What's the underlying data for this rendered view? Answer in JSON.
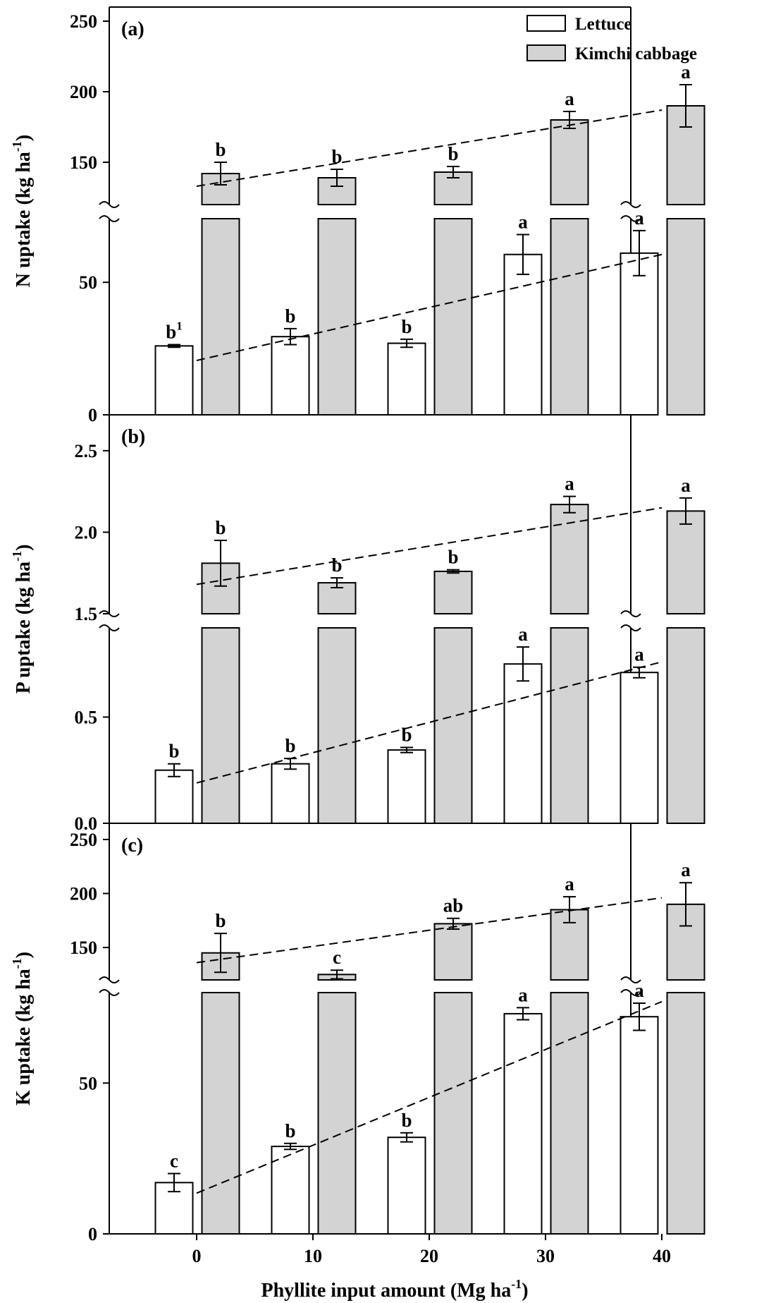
{
  "chart_data": {
    "type": "bar",
    "legend_position": "top-right",
    "x_axis": {
      "title_main": "Phyllite input amount (Mg ha",
      "title_sup": "-1",
      "title_end": ")",
      "ticks": [
        0,
        10,
        20,
        30,
        40
      ],
      "tick_labels": [
        "0",
        "10",
        "20",
        "30",
        "40"
      ]
    },
    "series": [
      {
        "name": "Lettuce",
        "color": "#ffffff"
      },
      {
        "name": "Kimchi cabbage",
        "color": "#d3d3d3"
      }
    ],
    "panels": [
      {
        "id": "a",
        "label": "(a)",
        "ylabel": "N uptake (kg ha",
        "ylabel_sup": "-1",
        "ylabel_end": ")",
        "lower_axis": {
          "min": 0,
          "max": 74,
          "ticks": [
            0,
            50
          ],
          "tick_labels": [
            "0",
            "50"
          ]
        },
        "upper_axis": {
          "min": 120,
          "max": 260,
          "ticks": [
            150,
            200,
            250
          ],
          "tick_labels": [
            "150",
            "200",
            "250"
          ]
        },
        "x": [
          0,
          10,
          20,
          30,
          40
        ],
        "lettuce": {
          "values": [
            26,
            29.5,
            27,
            60.5,
            61
          ],
          "errors": [
            0.5,
            3,
            1.5,
            7.5,
            8.5
          ],
          "letters": [
            "b",
            "b",
            "b",
            "a",
            "a"
          ],
          "letter_sup": [
            "1",
            "",
            "",
            "",
            ""
          ],
          "trend": [
            20.5,
            60.5
          ]
        },
        "cabbage": {
          "values": [
            142,
            139,
            143,
            180,
            190
          ],
          "errors": [
            8,
            6,
            4,
            6,
            15
          ],
          "letters": [
            "b",
            "b",
            "b",
            "a",
            "a"
          ],
          "trend": [
            133,
            187
          ]
        }
      },
      {
        "id": "b",
        "label": "(b)",
        "ylabel": "P uptake (kg ha",
        "ylabel_sup": "-1",
        "ylabel_end": ")",
        "lower_axis": {
          "min": 0,
          "max": 0.92,
          "ticks": [
            0.0,
            0.5
          ],
          "tick_labels": [
            "0.0",
            "0.5"
          ]
        },
        "upper_axis": {
          "min": 1.5,
          "max": 2.72,
          "ticks": [
            1.5,
            2.0,
            2.5
          ],
          "tick_labels": [
            "1.5",
            "2.0",
            "2.5"
          ]
        },
        "x": [
          0,
          10,
          20,
          30,
          40
        ],
        "lettuce": {
          "values": [
            0.25,
            0.28,
            0.345,
            0.75,
            0.71
          ],
          "errors": [
            0.03,
            0.025,
            0.012,
            0.08,
            0.025
          ],
          "letters": [
            "b",
            "b",
            "b",
            "a",
            "a"
          ],
          "letter_sup": [
            "",
            "",
            "",
            "",
            ""
          ],
          "trend": [
            0.19,
            0.76
          ]
        },
        "cabbage": {
          "values": [
            1.81,
            1.69,
            1.76,
            2.17,
            2.13
          ],
          "errors": [
            0.14,
            0.03,
            0.01,
            0.05,
            0.08
          ],
          "letters": [
            "b",
            "b",
            "b",
            "a",
            "a"
          ],
          "trend": [
            1.68,
            2.15
          ]
        }
      },
      {
        "id": "c",
        "label": "(c)",
        "ylabel": "K uptake (kg ha",
        "ylabel_sup": "-1",
        "ylabel_end": ")",
        "lower_axis": {
          "min": 0,
          "max": 80,
          "ticks": [
            0,
            50
          ],
          "tick_labels": [
            "0",
            "50"
          ]
        },
        "upper_axis": {
          "min": 120,
          "max": 265,
          "ticks": [
            150,
            200,
            250
          ],
          "tick_labels": [
            "150",
            "200",
            "250"
          ]
        },
        "x": [
          0,
          10,
          20,
          30,
          40
        ],
        "lettuce": {
          "values": [
            17,
            29,
            32,
            73,
            72
          ],
          "errors": [
            3,
            1,
            1.5,
            2,
            4.5
          ],
          "letters": [
            "c",
            "b",
            "b",
            "a",
            "a"
          ],
          "letter_sup": [
            "",
            "",
            "",
            "",
            ""
          ],
          "trend": [
            13.5,
            77
          ]
        },
        "cabbage": {
          "values": [
            145,
            125,
            172,
            185,
            190
          ],
          "errors": [
            18,
            4,
            5,
            12,
            20
          ],
          "letters": [
            "b",
            "c",
            "ab",
            "a",
            "a"
          ],
          "trend": [
            136,
            196
          ]
        }
      }
    ]
  }
}
